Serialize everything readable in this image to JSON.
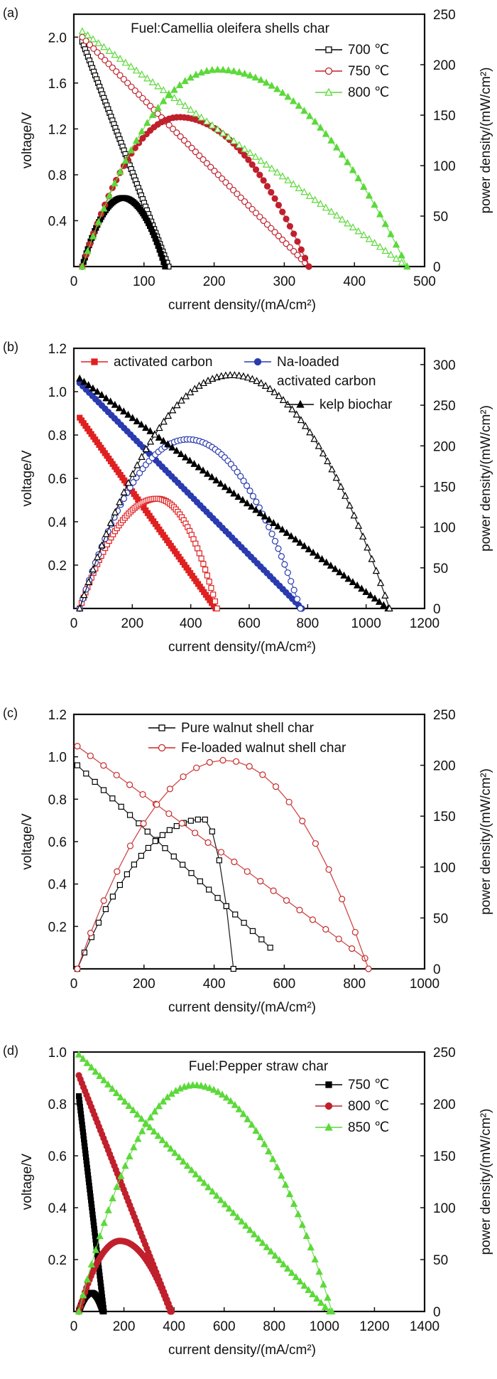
{
  "chart_data": [
    {
      "type": "line",
      "panel_label": "(a)",
      "title": "Fuel:Camellia oleifera shells char",
      "xlabel": "current density/(mA/cm²)",
      "ylabel": "voltage/V",
      "y2label": "power density/(mW/cm²)",
      "xlim": [
        0,
        500
      ],
      "ylim": [
        0,
        2.2
      ],
      "y2lim": [
        0,
        250
      ],
      "xticks": [
        "0",
        "100",
        "200",
        "300",
        "400",
        "500"
      ],
      "yticks": [
        {
          "v": 0.4,
          "t": "0.4"
        },
        {
          "v": 0.8,
          "t": "0.8"
        },
        {
          "v": 1.2,
          "t": "1.2"
        },
        {
          "v": 1.6,
          "t": "1.6"
        },
        {
          "v": 2.0,
          "t": "2.0"
        }
      ],
      "y2ticks": [
        "0",
        "50",
        "100",
        "150",
        "200",
        "250"
      ],
      "legend_position": "top-right",
      "series": [
        {
          "name": "700 ℃",
          "color": "#000000",
          "marker": "square",
          "v_x": [
            12,
            135
          ],
          "v_y": [
            1.96,
            0.0
          ],
          "p_x": [
            12,
            70,
            130
          ],
          "p_y": [
            0,
            68,
            0
          ]
        },
        {
          "name": "750 ℃",
          "color": "#c0202c",
          "marker": "circle",
          "v_x": [
            12,
            335
          ],
          "v_y": [
            2.0,
            0.0
          ],
          "p_x": [
            12,
            150,
            335
          ],
          "p_y": [
            0,
            148,
            0
          ]
        },
        {
          "name": "800 ℃",
          "color": "#5cd93a",
          "marker": "triangle",
          "v_x": [
            12,
            475
          ],
          "v_y": [
            2.05,
            0.0
          ],
          "p_x": [
            12,
            205,
            475
          ],
          "p_y": [
            0,
            195,
            0
          ]
        }
      ]
    },
    {
      "type": "line",
      "panel_label": "(b)",
      "title": "",
      "xlabel": "current density/(mA/cm²)",
      "ylabel": "voltage/V",
      "y2label": "power density/(mW/cm²)",
      "xlim": [
        0,
        1200
      ],
      "ylim": [
        0,
        1.2
      ],
      "y2lim": [
        0,
        320
      ],
      "xticks": [
        "0",
        "200",
        "400",
        "600",
        "800",
        "1000",
        "1200"
      ],
      "yticks": [
        {
          "v": 0.2,
          "t": "0.2"
        },
        {
          "v": 0.4,
          "t": "0.4"
        },
        {
          "v": 0.6,
          "t": "0.6"
        },
        {
          "v": 0.8,
          "t": "0.8"
        },
        {
          "v": 1.0,
          "t": "1.0"
        },
        {
          "v": 1.2,
          "t": "1.2"
        }
      ],
      "y2ticks": [
        "0",
        "50",
        "100",
        "150",
        "200",
        "250",
        "300"
      ],
      "legend_position": "top",
      "series": [
        {
          "name": "activated carbon",
          "color": "#e02020",
          "marker": "square",
          "v_x": [
            20,
            485
          ],
          "v_y": [
            0.88,
            0.0
          ],
          "p_x": [
            20,
            285,
            490
          ],
          "p_y": [
            0,
            135,
            0
          ]
        },
        {
          "name": "Na-loaded activated carbon",
          "color": "#2a3bb0",
          "marker": "circle",
          "v_x": [
            20,
            780
          ],
          "v_y": [
            1.04,
            0.0
          ],
          "p_x": [
            20,
            390,
            775
          ],
          "p_y": [
            0,
            208,
            0
          ]
        },
        {
          "name": "kelp biochar",
          "color": "#000000",
          "marker": "triangle",
          "v_x": [
            20,
            1075
          ],
          "v_y": [
            1.06,
            0.0
          ],
          "p_x": [
            20,
            540,
            1080
          ],
          "p_y": [
            0,
            287,
            0
          ]
        }
      ]
    },
    {
      "type": "line",
      "panel_label": "(c)",
      "title": "",
      "xlabel": "current density/(mA/cm²)",
      "ylabel": "voltage/V",
      "y2label": "power density/(mW/cm²)",
      "xlim": [
        0,
        1000
      ],
      "ylim": [
        0,
        1.2
      ],
      "y2lim": [
        0,
        250
      ],
      "xticks": [
        "0",
        "200",
        "400",
        "600",
        "800",
        "1000"
      ],
      "yticks": [
        {
          "v": 0.2,
          "t": "0.2"
        },
        {
          "v": 0.4,
          "t": "0.4"
        },
        {
          "v": 0.6,
          "t": "0.6"
        },
        {
          "v": 0.8,
          "t": "0.8"
        },
        {
          "v": 1.0,
          "t": "1.0"
        },
        {
          "v": 1.2,
          "t": "1.2"
        }
      ],
      "y2ticks": [
        "0",
        "50",
        "100",
        "150",
        "200",
        "250"
      ],
      "legend_position": "top",
      "series": [
        {
          "name": "Pure walnut shell char",
          "color": "#000000",
          "marker": "square",
          "v_x": [
            10,
            560
          ],
          "v_y": [
            0.96,
            0.1
          ],
          "p_x": [
            10,
            370,
            455
          ],
          "p_y": [
            0,
            147,
            0
          ]
        },
        {
          "name": "Fe-loaded walnut shell char",
          "color": "#c82828",
          "marker": "circle",
          "v_x": [
            10,
            830
          ],
          "v_y": [
            1.05,
            0.05
          ],
          "p_x": [
            10,
            430,
            840
          ],
          "p_y": [
            0,
            205,
            0
          ]
        }
      ]
    },
    {
      "type": "line",
      "panel_label": "(d)",
      "title": "Fuel:Pepper straw char",
      "xlabel": "current density/(mA/cm²)",
      "ylabel": "voltage/V",
      "y2label": "power density/(mW/cm²)",
      "xlim": [
        0,
        1400
      ],
      "ylim": [
        0,
        1.0
      ],
      "y2lim": [
        0,
        250
      ],
      "xticks": [
        "0",
        "200",
        "400",
        "600",
        "800",
        "1000",
        "1200",
        "1400"
      ],
      "yticks": [
        {
          "v": 0.2,
          "t": "0.2"
        },
        {
          "v": 0.4,
          "t": "0.4"
        },
        {
          "v": 0.6,
          "t": "0.6"
        },
        {
          "v": 0.8,
          "t": "0.8"
        },
        {
          "v": 1.0,
          "t": "1.0"
        }
      ],
      "y2ticks": [
        "0",
        "50",
        "100",
        "150",
        "200",
        "250"
      ],
      "legend_position": "top-right",
      "series": [
        {
          "name": "750 ℃",
          "color": "#000000",
          "marker": "square",
          "v_x": [
            20,
            120
          ],
          "v_y": [
            0.83,
            0.0
          ],
          "p_x": [
            20,
            70,
            115
          ],
          "p_y": [
            0,
            18,
            0
          ]
        },
        {
          "name": "800 ℃",
          "color": "#c0202c",
          "marker": "circle",
          "v_x": [
            20,
            390
          ],
          "v_y": [
            0.91,
            0.0
          ],
          "p_x": [
            20,
            185,
            385
          ],
          "p_y": [
            0,
            68,
            0
          ]
        },
        {
          "name": "850 ℃",
          "color": "#5cd93a",
          "marker": "triangle",
          "v_x": [
            20,
            1020
          ],
          "v_y": [
            0.99,
            0.0
          ],
          "p_x": [
            20,
            480,
            1030
          ],
          "p_y": [
            0,
            218,
            0
          ]
        }
      ]
    }
  ]
}
